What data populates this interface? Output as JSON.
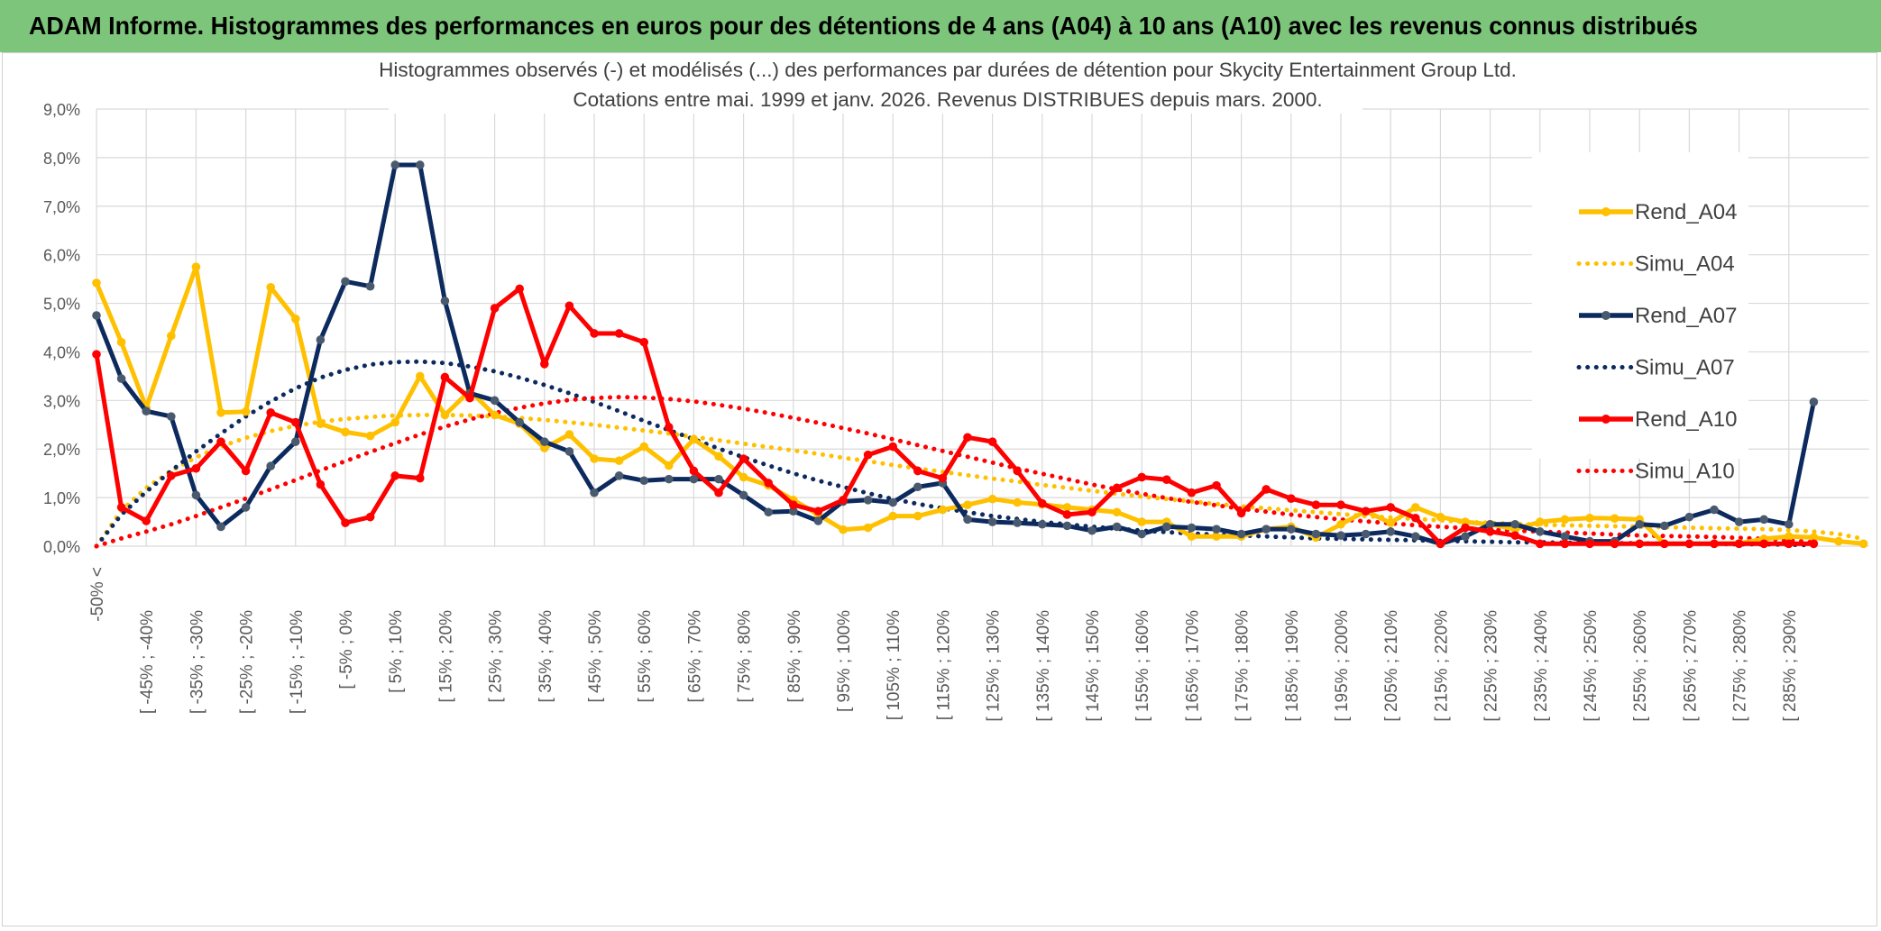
{
  "banner": {
    "title": "ADAM Informe. Histogrammes des performances en euros pour des détentions de 4 ans (A04) à 10 ans (A10) avec les revenus connus distribués"
  },
  "colors": {
    "banner_bg": "#7cc57a",
    "A04": "#ffc000",
    "A07": "#0d2a5e",
    "A07_marker": "#4a5a6e",
    "A10": "#ff0000",
    "grid": "#d9d9d9",
    "axis_text": "#595959"
  },
  "chart_data": {
    "type": "line",
    "title_lines": [
      "Histogrammes observés (-) et modélisés (...) des performances par durées de détention pour Skycity Entertainment Group Ltd.",
      "Cotations entre mai. 1999 et janv. 2026. Revenus DISTRIBUES depuis mars. 2000."
    ],
    "ylim": [
      0,
      9
    ],
    "yticks": [
      "0,0%",
      "1,0%",
      "2,0%",
      "3,0%",
      "4,0%",
      "5,0%",
      "6,0%",
      "7,0%",
      "8,0%",
      "9,0%"
    ],
    "xticklabels": [
      "-50% <",
      "[ -45% ; -40%",
      "[ -35% ; -30%",
      "[ -25% ; -20%",
      "[ -15% ; -10%",
      "[ -5% ; 0%",
      "[ 5% ; 10%",
      "[ 15% ; 20%",
      "[ 25% ; 30%",
      "[ 35% ; 40%",
      "[ 45% ; 50%",
      "[ 55% ; 60%",
      "[ 65% ; 70%",
      "[ 75% ; 80%",
      "[ 85% ; 90%",
      "[ 95% ; 100%",
      "[ 105% ; 110%",
      "[ 115% ; 120%",
      "[ 125% ; 130%",
      "[ 135% ; 140%",
      "[ 145% ; 150%",
      "[ 155% ; 160%",
      "[ 165% ; 170%",
      "[ 175% ; 180%",
      "[ 185% ; 190%",
      "[ 195% ; 200%",
      "[ 205% ; 210%",
      "[ 215% ; 220%",
      "[ 225% ; 230%",
      "[ 235% ; 240%",
      "[ 245% ; 250%",
      "[ 255% ; 260%",
      "[ 265% ; 270%",
      "[ 275% ; 280%",
      "[ 285% ; 290%"
    ],
    "series": [
      {
        "name": "Rend_A04",
        "style": "solid",
        "color": "#ffc000",
        "values": [
          5.42,
          4.2,
          2.85,
          4.33,
          5.75,
          2.75,
          2.77,
          5.33,
          4.68,
          2.52,
          2.35,
          2.27,
          2.55,
          3.5,
          2.7,
          3.2,
          2.7,
          2.52,
          2.02,
          2.3,
          1.8,
          1.76,
          2.05,
          1.66,
          2.2,
          1.85,
          1.42,
          1.25,
          0.95,
          0.65,
          0.34,
          0.38,
          0.62,
          0.62,
          0.75,
          0.85,
          0.97,
          0.9,
          0.86,
          0.8,
          0.75,
          0.7,
          0.5,
          0.5,
          0.2,
          0.2,
          0.2,
          0.35,
          0.4,
          0.18,
          0.45,
          0.72,
          0.48,
          0.8,
          0.6,
          0.5,
          0.45,
          0.35,
          0.5,
          0.55,
          0.58,
          0.57,
          0.55,
          0.05,
          0.05,
          0.05,
          0.06,
          0.15,
          0.2,
          0.18,
          0.1,
          0.05
        ]
      },
      {
        "name": "Simu_A04",
        "style": "dotted",
        "color": "#ffc000",
        "values": [
          0.0,
          0.73,
          1.2,
          1.55,
          1.83,
          2.05,
          2.23,
          2.37,
          2.48,
          2.56,
          2.62,
          2.66,
          2.69,
          2.7,
          2.7,
          2.69,
          2.67,
          2.64,
          2.6,
          2.55,
          2.5,
          2.44,
          2.38,
          2.32,
          2.25,
          2.18,
          2.11,
          2.04,
          1.97,
          1.9,
          1.82,
          1.75,
          1.67,
          1.6,
          1.53,
          1.46,
          1.39,
          1.33,
          1.26,
          1.2,
          1.14,
          1.08,
          1.02,
          0.97,
          0.92,
          0.87,
          0.82,
          0.78,
          0.74,
          0.7,
          0.66,
          0.62,
          0.59,
          0.56,
          0.53,
          0.5,
          0.48,
          0.46,
          0.44,
          0.43,
          0.42,
          0.41,
          0.4,
          0.39,
          0.38,
          0.37,
          0.36,
          0.35,
          0.33,
          0.3,
          0.25,
          0.15
        ]
      },
      {
        "name": "Rend_A07",
        "style": "solid",
        "color": "#0d2a5e",
        "values": [
          4.75,
          3.45,
          2.78,
          2.67,
          1.05,
          0.4,
          0.8,
          1.65,
          2.15,
          4.25,
          5.45,
          5.35,
          7.85,
          7.85,
          5.05,
          3.15,
          3.0,
          2.55,
          2.15,
          1.95,
          1.1,
          1.45,
          1.35,
          1.38,
          1.38,
          1.38,
          1.05,
          0.7,
          0.72,
          0.52,
          0.92,
          0.95,
          0.9,
          1.22,
          1.3,
          0.55,
          0.5,
          0.48,
          0.45,
          0.42,
          0.32,
          0.4,
          0.25,
          0.4,
          0.38,
          0.35,
          0.25,
          0.35,
          0.35,
          0.25,
          0.22,
          0.25,
          0.3,
          0.2,
          0.05,
          0.2,
          0.45,
          0.45,
          0.3,
          0.2,
          0.1,
          0.1,
          0.45,
          0.42,
          0.6,
          0.75,
          0.5,
          0.55,
          0.45,
          2.97
        ]
      },
      {
        "name": "Simu_A07",
        "style": "dotted",
        "color": "#0d2a5e",
        "values": [
          0.0,
          0.65,
          1.12,
          1.55,
          1.95,
          2.32,
          2.67,
          2.98,
          3.25,
          3.47,
          3.63,
          3.74,
          3.79,
          3.8,
          3.77,
          3.7,
          3.6,
          3.47,
          3.32,
          3.15,
          2.97,
          2.78,
          2.58,
          2.39,
          2.2,
          2.01,
          1.83,
          1.66,
          1.5,
          1.35,
          1.22,
          1.09,
          0.97,
          0.87,
          0.78,
          0.7,
          0.62,
          0.56,
          0.5,
          0.45,
          0.4,
          0.36,
          0.32,
          0.29,
          0.26,
          0.24,
          0.22,
          0.2,
          0.18,
          0.16,
          0.15,
          0.14,
          0.13,
          0.12,
          0.11,
          0.1,
          0.09,
          0.08,
          0.08,
          0.07,
          0.07,
          0.06,
          0.06,
          0.05,
          0.05,
          0.05,
          0.04,
          0.04,
          0.03,
          0.02
        ]
      },
      {
        "name": "Rend_A10",
        "style": "solid",
        "color": "#ff0000",
        "values": [
          3.95,
          0.8,
          0.52,
          1.45,
          1.6,
          2.15,
          1.55,
          2.75,
          2.55,
          1.27,
          0.48,
          0.6,
          1.45,
          1.4,
          3.48,
          3.05,
          4.9,
          5.3,
          3.75,
          4.95,
          4.38,
          4.38,
          4.2,
          2.45,
          1.55,
          1.1,
          1.8,
          1.3,
          0.85,
          0.72,
          0.95,
          1.88,
          2.05,
          1.55,
          1.4,
          2.24,
          2.15,
          1.55,
          0.88,
          0.65,
          0.7,
          1.2,
          1.42,
          1.37,
          1.1,
          1.25,
          0.68,
          1.17,
          0.98,
          0.85,
          0.85,
          0.72,
          0.8,
          0.58,
          0.05,
          0.38,
          0.3,
          0.22,
          0.05,
          0.05,
          0.05,
          0.05,
          0.05,
          0.05,
          0.05,
          0.05,
          0.05,
          0.05,
          0.05,
          0.05
        ]
      },
      {
        "name": "Simu_A10",
        "style": "dotted",
        "color": "#ff0000",
        "values": [
          0.0,
          0.16,
          0.3,
          0.45,
          0.62,
          0.8,
          0.98,
          1.17,
          1.36,
          1.56,
          1.75,
          1.94,
          2.12,
          2.3,
          2.46,
          2.61,
          2.74,
          2.85,
          2.94,
          3.01,
          3.05,
          3.07,
          3.06,
          3.03,
          2.98,
          2.91,
          2.83,
          2.74,
          2.64,
          2.54,
          2.43,
          2.32,
          2.2,
          2.08,
          1.96,
          1.84,
          1.72,
          1.6,
          1.49,
          1.38,
          1.27,
          1.17,
          1.08,
          0.99,
          0.91,
          0.84,
          0.77,
          0.71,
          0.65,
          0.6,
          0.55,
          0.51,
          0.47,
          0.43,
          0.4,
          0.37,
          0.34,
          0.32,
          0.3,
          0.28,
          0.26,
          0.24,
          0.22,
          0.21,
          0.2,
          0.19,
          0.17,
          0.15,
          0.12,
          0.08
        ]
      }
    ],
    "legend": [
      "Rend_A04",
      "Simu_A04",
      "Rend_A07",
      "Simu_A07",
      "Rend_A10",
      "Simu_A10"
    ],
    "legend_position": "right"
  }
}
